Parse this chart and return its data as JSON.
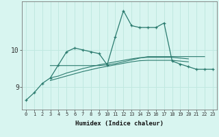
{
  "xlabel": "Humidex (Indice chaleur)",
  "bg_color": "#d8f5f0",
  "grid_color": "#c0e8e0",
  "line_color": "#2a7a6e",
  "x_values": [
    0,
    1,
    2,
    3,
    4,
    5,
    6,
    7,
    8,
    9,
    10,
    11,
    12,
    13,
    14,
    15,
    16,
    17,
    18,
    19,
    20,
    21,
    22,
    23
  ],
  "series": [
    [
      8.65,
      8.85,
      9.1,
      9.25,
      9.6,
      9.95,
      10.05,
      10.0,
      9.95,
      9.9,
      9.6,
      10.35,
      11.05,
      10.65,
      10.6,
      10.6,
      10.6,
      10.72,
      9.7,
      9.62,
      9.55,
      9.48,
      9.48,
      9.48
    ],
    [
      null,
      null,
      null,
      9.58,
      9.58,
      9.58,
      9.58,
      9.58,
      9.58,
      9.58,
      9.6,
      9.63,
      9.68,
      9.73,
      9.78,
      9.82,
      9.82,
      9.82,
      9.82,
      9.82,
      9.82,
      9.82,
      9.82,
      null
    ],
    [
      null,
      null,
      null,
      9.25,
      9.3,
      9.38,
      9.44,
      9.5,
      9.55,
      9.6,
      9.64,
      9.68,
      9.72,
      9.76,
      9.79,
      9.8,
      9.8,
      9.8,
      9.8,
      9.78,
      9.76,
      null,
      null,
      null
    ],
    [
      null,
      null,
      null,
      9.18,
      9.24,
      9.3,
      9.36,
      9.42,
      9.47,
      9.52,
      9.56,
      9.6,
      9.64,
      9.68,
      9.71,
      9.72,
      9.72,
      9.72,
      9.72,
      9.7,
      9.68,
      null,
      null,
      null
    ]
  ],
  "ylim": [
    8.4,
    11.3
  ],
  "yticks": [
    9,
    10
  ],
  "xlim": [
    -0.5,
    23.5
  ]
}
